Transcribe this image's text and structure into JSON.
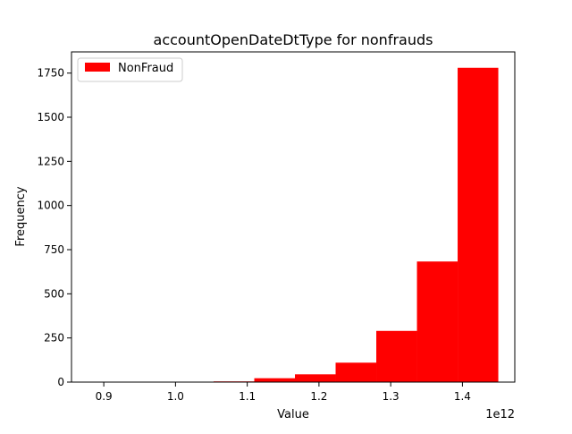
{
  "chart_data": {
    "type": "bar",
    "title": "accountOpenDateDtType for nonfrauds",
    "xlabel": "Value",
    "ylabel": "Frequency",
    "x_offset_label": "1e12",
    "x_scale": 1000000000000.0,
    "xlim": [
      0.855,
      1.473
    ],
    "ylim": [
      0,
      1870
    ],
    "x_ticks": [
      0.9,
      1.0,
      1.1,
      1.2,
      1.3,
      1.4
    ],
    "x_tick_labels": [
      "0.9",
      "1.0",
      "1.1",
      "1.2",
      "1.3",
      "1.4"
    ],
    "y_ticks": [
      0,
      250,
      500,
      750,
      1000,
      1250,
      1500,
      1750
    ],
    "y_tick_labels": [
      "0",
      "250",
      "500",
      "750",
      "1000",
      "1250",
      "1500",
      "1750"
    ],
    "grid": false,
    "legend_position": "top-left",
    "series": [
      {
        "name": "NonFraud",
        "color": "#ff0000",
        "bin_edges": [
          0.883,
          0.9397,
          0.9964,
          1.0531,
          1.1098,
          1.1665,
          1.2232,
          1.2799,
          1.3366,
          1.3933,
          1.45
        ],
        "values": [
          1,
          0,
          1,
          4,
          22,
          44,
          110,
          290,
          683,
          1780
        ]
      }
    ]
  }
}
